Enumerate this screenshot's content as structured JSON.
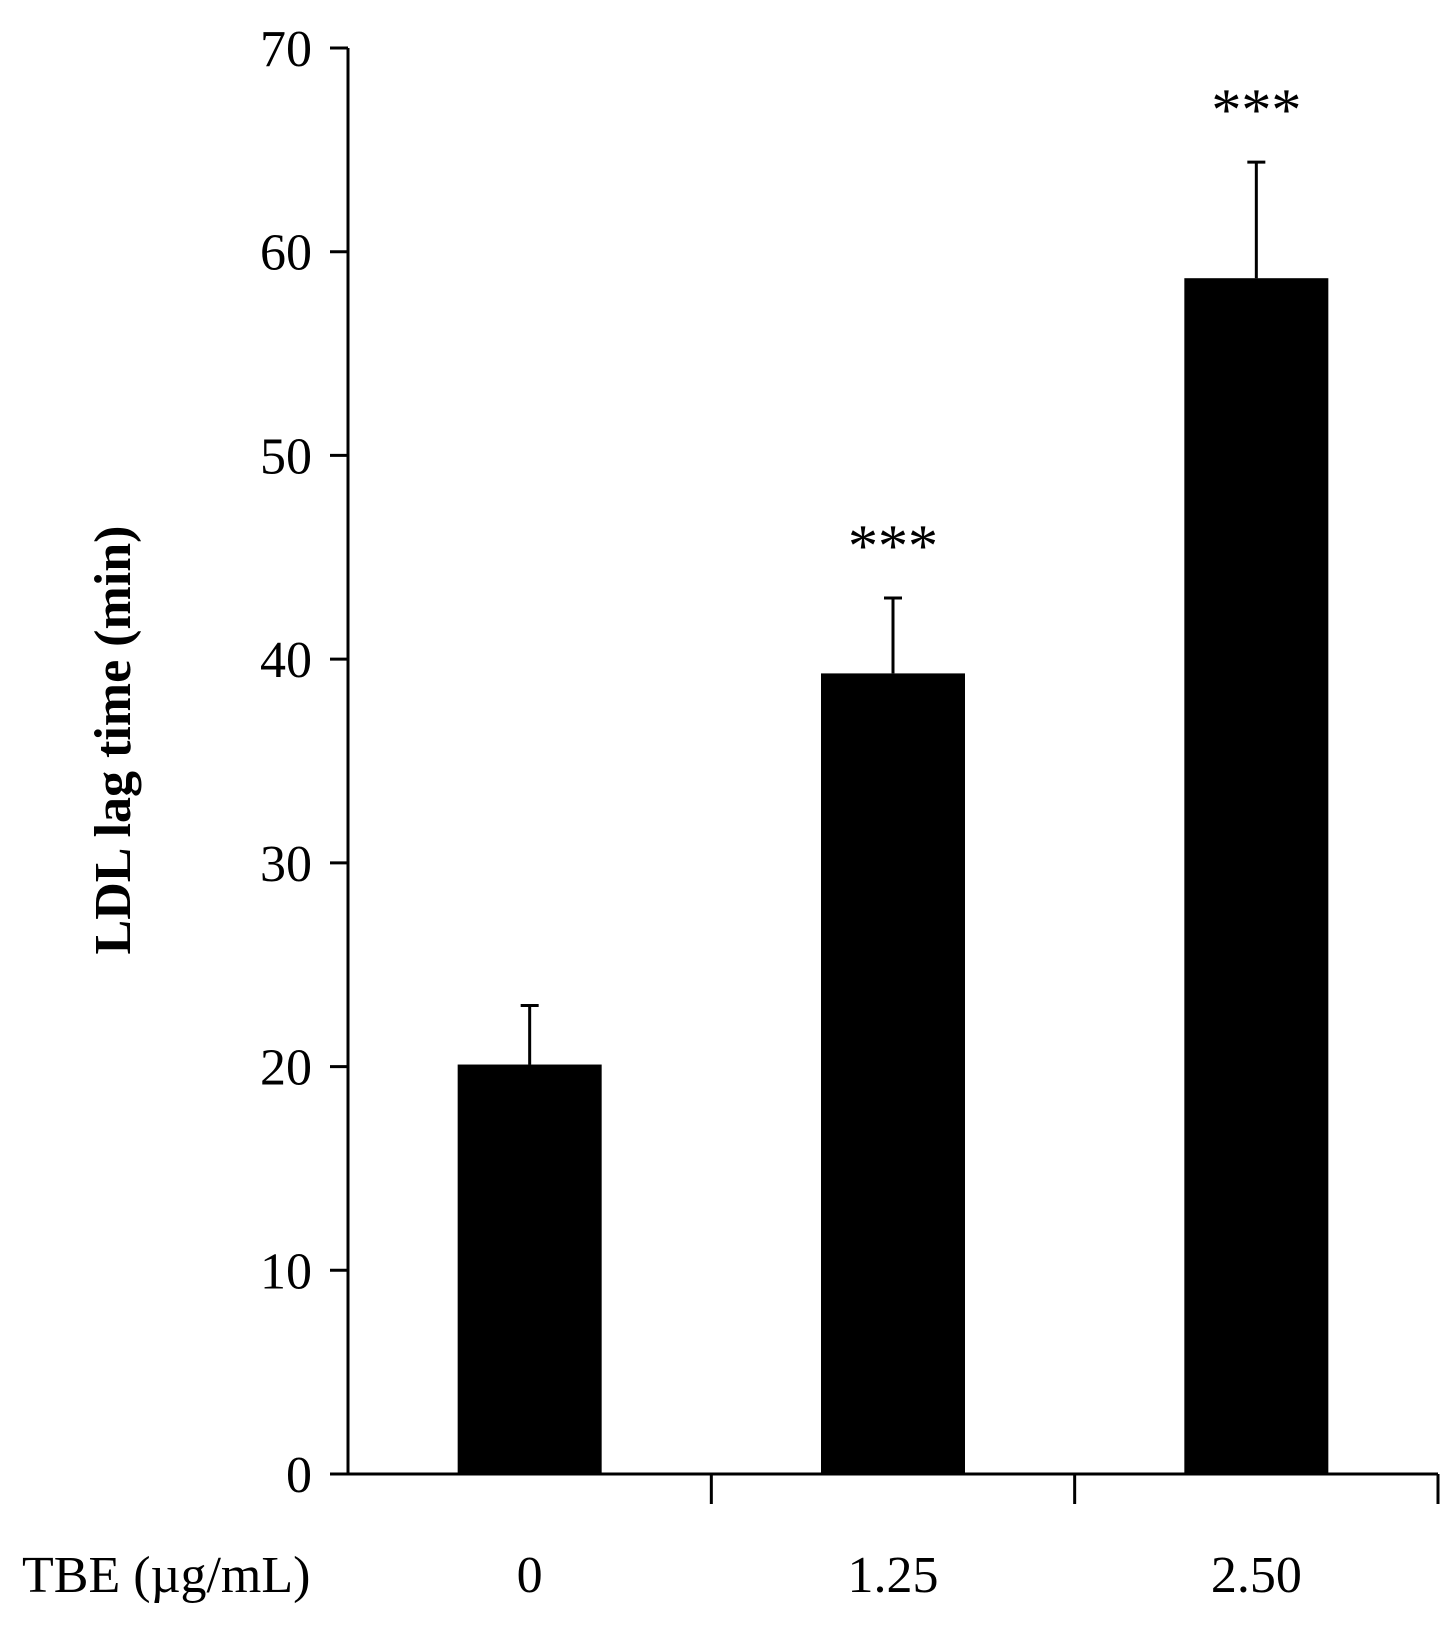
{
  "chart_data": {
    "type": "bar",
    "title": "",
    "xlabel": "TBE (µg/mL)",
    "ylabel": "LDL lag time (min)",
    "categories": [
      "0",
      "1.25",
      "2.50"
    ],
    "values": [
      20.1,
      39.3,
      58.7
    ],
    "errors": [
      2.9,
      3.7,
      5.7
    ],
    "annotations": [
      "",
      "***",
      "***"
    ],
    "ylim": [
      0,
      70
    ],
    "yticks": [
      "0",
      "10",
      "20",
      "30",
      "40",
      "50",
      "60",
      "70"
    ],
    "grid": false,
    "bar_color": "#000000"
  }
}
